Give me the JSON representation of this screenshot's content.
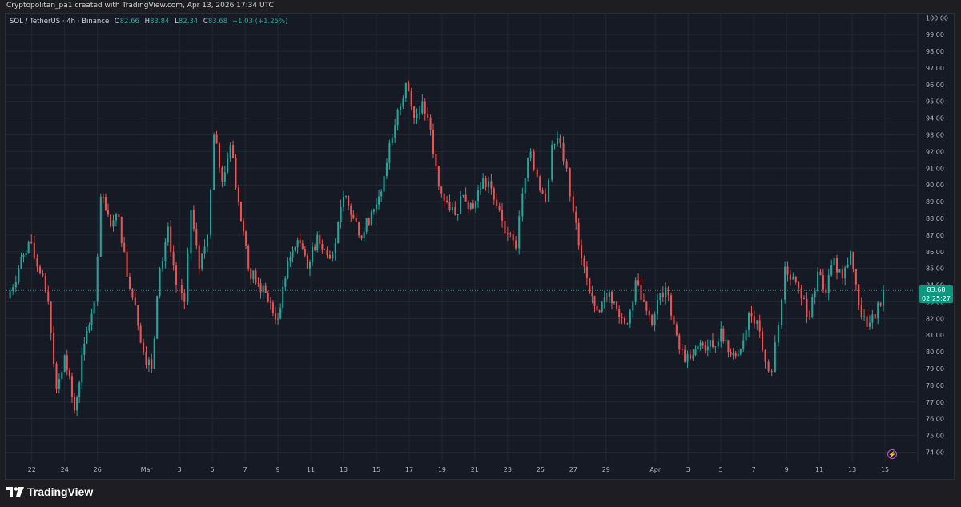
{
  "header": {
    "attribution": "Cryptopolitan_pa1 created with TradingView.com, Apr 13, 2026 17:34 UTC"
  },
  "legend": {
    "symbol": "SOL / TetherUS · 4h · Binance",
    "o_label": "O",
    "o_value": "82.66",
    "h_label": "H",
    "h_value": "83.84",
    "l_label": "L",
    "l_value": "82.34",
    "c_label": "C",
    "c_value": "83.68",
    "change": "+1.03 (+1.25%)"
  },
  "price_tag": {
    "price": "83.68",
    "countdown": "02:25:27"
  },
  "footer": {
    "brand": "TradingView"
  },
  "colors": {
    "background": "#161a25",
    "grid": "#232734",
    "up": "#26a69a",
    "down": "#ef5350",
    "axis_text": "#b2b5be",
    "price_tag": "#089981"
  },
  "chart_data": {
    "type": "candlestick",
    "title": "",
    "y_ticks": [
      "74.00",
      "75.00",
      "76.00",
      "77.00",
      "78.00",
      "79.00",
      "80.00",
      "81.00",
      "82.00",
      "83.00",
      "84.00",
      "85.00",
      "86.00",
      "87.00",
      "88.00",
      "89.00",
      "90.00",
      "91.00",
      "92.00",
      "93.00",
      "94.00",
      "95.00",
      "96.00",
      "97.00",
      "98.00",
      "99.00",
      "100.00"
    ],
    "ylim": [
      73.4,
      100.3
    ],
    "x_tick_labels": [
      "22",
      "24",
      "26",
      "Mar",
      "3",
      "5",
      "7",
      "9",
      "11",
      "13",
      "15",
      "17",
      "19",
      "21",
      "23",
      "25",
      "27",
      "29",
      "Apr",
      "3",
      "5",
      "7",
      "9",
      "11",
      "13",
      "15"
    ],
    "x_tick_days": [
      2,
      4,
      6,
      9,
      11,
      13,
      15,
      17,
      19,
      21,
      23,
      25,
      27,
      29,
      31,
      33,
      35,
      37,
      40,
      42,
      44,
      46,
      48,
      50,
      52,
      54
    ],
    "x_range_days": [
      0.45,
      55.9
    ],
    "x_reference": "day 0 = Feb 20",
    "grid": true,
    "last_price": 83.68,
    "series": [
      {
        "points": [
          {
            "day": 0.5,
            "close": 83.2
          },
          {
            "day": 1.2,
            "close": 85.0
          },
          {
            "day": 1.8,
            "close": 86.6
          },
          {
            "day": 2.5,
            "close": 84.7
          },
          {
            "day": 3.0,
            "close": 83.0
          },
          {
            "day": 3.5,
            "close": 77.8
          },
          {
            "day": 4.0,
            "close": 79.8
          },
          {
            "day": 4.6,
            "close": 76.5
          },
          {
            "day": 5.2,
            "close": 80.5
          },
          {
            "day": 5.8,
            "close": 83.0
          },
          {
            "day": 6.2,
            "close": 89.3
          },
          {
            "day": 6.8,
            "close": 87.5
          },
          {
            "day": 7.3,
            "close": 88.1
          },
          {
            "day": 7.8,
            "close": 84.5
          },
          {
            "day": 8.3,
            "close": 82.8
          },
          {
            "day": 8.8,
            "close": 80.0
          },
          {
            "day": 9.3,
            "close": 79.0
          },
          {
            "day": 9.8,
            "close": 85.0
          },
          {
            "day": 10.3,
            "close": 87.5
          },
          {
            "day": 10.8,
            "close": 84.0
          },
          {
            "day": 11.3,
            "close": 83.0
          },
          {
            "day": 11.7,
            "close": 88.5
          },
          {
            "day": 12.2,
            "close": 85.0
          },
          {
            "day": 12.7,
            "close": 87.0
          },
          {
            "day": 13.1,
            "close": 93.0
          },
          {
            "day": 13.6,
            "close": 90.2
          },
          {
            "day": 14.1,
            "close": 92.4
          },
          {
            "day": 14.6,
            "close": 89.0
          },
          {
            "day": 15.2,
            "close": 85.0
          },
          {
            "day": 15.8,
            "close": 84.1
          },
          {
            "day": 16.4,
            "close": 83.0
          },
          {
            "day": 17.0,
            "close": 82.0
          },
          {
            "day": 17.6,
            "close": 85.4
          },
          {
            "day": 18.2,
            "close": 86.7
          },
          {
            "day": 18.8,
            "close": 85.0
          },
          {
            "day": 19.4,
            "close": 87.0
          },
          {
            "day": 20.0,
            "close": 85.8
          },
          {
            "day": 20.5,
            "close": 86.5
          },
          {
            "day": 21.0,
            "close": 89.3
          },
          {
            "day": 21.6,
            "close": 88.0
          },
          {
            "day": 22.1,
            "close": 86.8
          },
          {
            "day": 22.7,
            "close": 88.4
          },
          {
            "day": 23.3,
            "close": 89.6
          },
          {
            "day": 23.8,
            "close": 92.5
          },
          {
            "day": 24.3,
            "close": 94.5
          },
          {
            "day": 24.8,
            "close": 96.1
          },
          {
            "day": 25.3,
            "close": 94.0
          },
          {
            "day": 25.8,
            "close": 95.0
          },
          {
            "day": 26.3,
            "close": 93.3
          },
          {
            "day": 26.8,
            "close": 89.9
          },
          {
            "day": 27.3,
            "close": 89.0
          },
          {
            "day": 27.8,
            "close": 88.2
          },
          {
            "day": 28.3,
            "close": 89.4
          },
          {
            "day": 28.9,
            "close": 88.6
          },
          {
            "day": 29.5,
            "close": 90.4
          },
          {
            "day": 30.0,
            "close": 89.8
          },
          {
            "day": 30.5,
            "close": 88.5
          },
          {
            "day": 31.0,
            "close": 87.1
          },
          {
            "day": 31.5,
            "close": 86.2
          },
          {
            "day": 31.9,
            "close": 89.5
          },
          {
            "day": 32.4,
            "close": 92.0
          },
          {
            "day": 32.8,
            "close": 90.5
          },
          {
            "day": 33.3,
            "close": 89.0
          },
          {
            "day": 33.7,
            "close": 92.4
          },
          {
            "day": 34.2,
            "close": 92.5
          },
          {
            "day": 34.6,
            "close": 91.0
          },
          {
            "day": 35.0,
            "close": 88.4
          },
          {
            "day": 35.5,
            "close": 85.6
          },
          {
            "day": 36.0,
            "close": 83.5
          },
          {
            "day": 36.6,
            "close": 82.4
          },
          {
            "day": 37.2,
            "close": 83.6
          },
          {
            "day": 37.8,
            "close": 82.1
          },
          {
            "day": 38.3,
            "close": 81.7
          },
          {
            "day": 38.8,
            "close": 84.3
          },
          {
            "day": 39.3,
            "close": 83.0
          },
          {
            "day": 39.8,
            "close": 81.6
          },
          {
            "day": 40.3,
            "close": 83.5
          },
          {
            "day": 40.8,
            "close": 83.4
          },
          {
            "day": 41.3,
            "close": 81.0
          },
          {
            "day": 41.8,
            "close": 79.4
          },
          {
            "day": 42.3,
            "close": 79.8
          },
          {
            "day": 42.9,
            "close": 80.4
          },
          {
            "day": 43.5,
            "close": 80.3
          },
          {
            "day": 44.0,
            "close": 81.4
          },
          {
            "day": 44.6,
            "close": 79.8
          },
          {
            "day": 45.2,
            "close": 80.2
          },
          {
            "day": 45.7,
            "close": 82.3
          },
          {
            "day": 46.2,
            "close": 81.9
          },
          {
            "day": 46.7,
            "close": 79.4
          },
          {
            "day": 47.1,
            "close": 78.8
          },
          {
            "day": 47.5,
            "close": 81.6
          },
          {
            "day": 47.9,
            "close": 85.1
          },
          {
            "day": 48.4,
            "close": 84.5
          },
          {
            "day": 48.9,
            "close": 83.2
          },
          {
            "day": 49.4,
            "close": 82.1
          },
          {
            "day": 49.9,
            "close": 84.8
          },
          {
            "day": 50.4,
            "close": 83.5
          },
          {
            "day": 50.9,
            "close": 85.6
          },
          {
            "day": 51.4,
            "close": 84.4
          },
          {
            "day": 51.9,
            "close": 86.0
          },
          {
            "day": 52.4,
            "close": 82.8
          },
          {
            "day": 52.9,
            "close": 81.5
          },
          {
            "day": 53.4,
            "close": 82.0
          },
          {
            "day": 53.9,
            "close": 83.68
          }
        ]
      }
    ]
  }
}
